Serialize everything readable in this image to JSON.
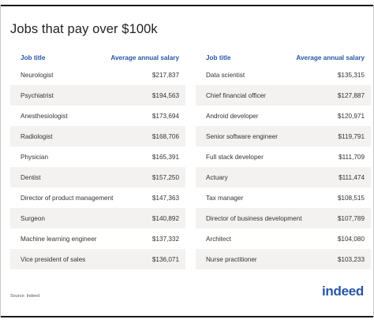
{
  "title": "Jobs that pay over $100k",
  "headers": {
    "job": "Job title",
    "salary": "Average annual salary"
  },
  "left": [
    {
      "job": "Neurologist",
      "salary": "$217,837"
    },
    {
      "job": "Psychiatrist",
      "salary": "$194,563"
    },
    {
      "job": "Anesthesiologist",
      "salary": "$173,694"
    },
    {
      "job": "Radiologist",
      "salary": "$168,706"
    },
    {
      "job": "Physician",
      "salary": "$165,391"
    },
    {
      "job": "Dentist",
      "salary": "$157,250"
    },
    {
      "job": "Director of product management",
      "salary": "$147,363"
    },
    {
      "job": "Surgeon",
      "salary": "$140,892"
    },
    {
      "job": "Machine learning engineer",
      "salary": "$137,332"
    },
    {
      "job": "Vice president of sales",
      "salary": "$136,071"
    }
  ],
  "right": [
    {
      "job": "Data scientist",
      "salary": "$135,315"
    },
    {
      "job": "Chief financial officer",
      "salary": "$127,887"
    },
    {
      "job": "Android developer",
      "salary": "$120,971"
    },
    {
      "job": "Senior software engineer",
      "salary": "$119,791"
    },
    {
      "job": "Full stack developer",
      "salary": "$111,709"
    },
    {
      "job": "Actuary",
      "salary": "$111,474"
    },
    {
      "job": "Tax manager",
      "salary": "$108,515"
    },
    {
      "job": "Director of business development",
      "salary": "$107,789"
    },
    {
      "job": "Architect",
      "salary": "$104,080"
    },
    {
      "job": "Nurse practitioner",
      "salary": "$103,233"
    }
  ],
  "source": "Source: Indeed",
  "logo": "indeed",
  "colors": {
    "accent": "#2557a7",
    "row_shade": "#f3f2f1"
  }
}
